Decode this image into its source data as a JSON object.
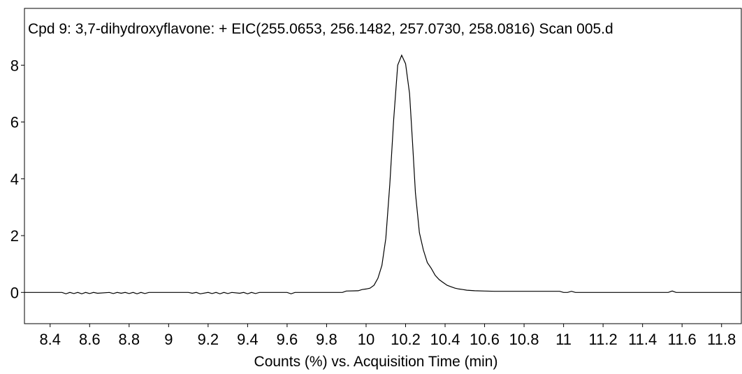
{
  "chart_data": {
    "type": "line",
    "title": "Cpd 9: 3,7-dihydroxyflavone: + EIC(255.0653, 256.1482, 257.0730, 258.0816) Scan 005.d",
    "xlabel": "Counts (%) vs. Acquisition Time (min)",
    "ylabel": "",
    "xlim": [
      8.27,
      11.9
    ],
    "ylim": [
      -1.1,
      10.0
    ],
    "x_ticks": [
      8.4,
      8.6,
      8.8,
      9,
      9.2,
      9.4,
      9.6,
      9.8,
      10,
      10.2,
      10.4,
      10.6,
      10.8,
      11,
      11.2,
      11.4,
      11.6,
      11.8
    ],
    "x_tick_labels": [
      "8.4",
      "8.6",
      "8.8",
      "9",
      "9.2",
      "9.4",
      "9.6",
      "9.8",
      "10",
      "10.2",
      "10.4",
      "10.6",
      "10.8",
      "11",
      "11.2",
      "11.4",
      "11.6",
      "11.8"
    ],
    "y_ticks": [
      0,
      2,
      4,
      6,
      8
    ],
    "y_tick_labels": [
      "0",
      "2",
      "4",
      "6",
      "8"
    ],
    "grid": false,
    "line_color": "#000000",
    "series": [
      {
        "x": [
          8.27,
          8.46,
          8.48,
          8.5,
          8.52,
          8.54,
          8.56,
          8.58,
          8.6,
          8.62,
          8.64,
          8.7,
          8.72,
          8.74,
          8.76,
          8.78,
          8.8,
          8.82,
          8.84,
          8.86,
          8.88,
          8.9,
          8.92,
          9.1,
          9.12,
          9.14,
          9.16,
          9.2,
          9.22,
          9.24,
          9.26,
          9.28,
          9.3,
          9.32,
          9.36,
          9.38,
          9.4,
          9.42,
          9.44,
          9.46,
          9.48,
          9.6,
          9.62,
          9.64,
          9.88,
          9.9,
          9.96,
          9.98,
          10.0,
          10.02,
          10.04,
          10.06,
          10.08,
          10.1,
          10.12,
          10.14,
          10.16,
          10.18,
          10.2,
          10.22,
          10.235,
          10.25,
          10.27,
          10.29,
          10.31,
          10.33,
          10.35,
          10.37,
          10.39,
          10.41,
          10.43,
          10.45,
          10.47,
          10.49,
          10.51,
          10.53,
          10.55,
          10.6,
          10.65,
          10.7,
          10.75,
          10.85,
          10.98,
          11.0,
          11.02,
          11.04,
          11.06,
          11.2,
          11.53,
          11.55,
          11.57,
          11.9
        ],
        "y": [
          0.0,
          0.0,
          -0.05,
          0.0,
          -0.04,
          0.0,
          -0.05,
          0.0,
          -0.04,
          0.0,
          -0.03,
          0.0,
          -0.04,
          0.0,
          -0.03,
          0.0,
          -0.04,
          0.0,
          -0.05,
          0.0,
          -0.04,
          0.0,
          0.0,
          0.0,
          -0.03,
          0.0,
          -0.05,
          0.0,
          -0.04,
          0.0,
          -0.05,
          0.0,
          -0.04,
          0.0,
          -0.03,
          0.0,
          -0.05,
          0.0,
          -0.04,
          0.0,
          0.0,
          0.0,
          -0.05,
          0.0,
          0.0,
          0.05,
          0.06,
          0.1,
          0.12,
          0.15,
          0.25,
          0.5,
          0.95,
          1.9,
          3.8,
          6.1,
          8.0,
          8.35,
          8.05,
          7.0,
          5.3,
          3.5,
          2.1,
          1.5,
          1.05,
          0.85,
          0.6,
          0.45,
          0.35,
          0.25,
          0.2,
          0.15,
          0.12,
          0.1,
          0.08,
          0.07,
          0.06,
          0.05,
          0.04,
          0.04,
          0.04,
          0.04,
          0.04,
          0.0,
          0.0,
          0.04,
          0.0,
          0.0,
          0.0,
          0.05,
          0.0,
          0.0
        ]
      }
    ]
  }
}
